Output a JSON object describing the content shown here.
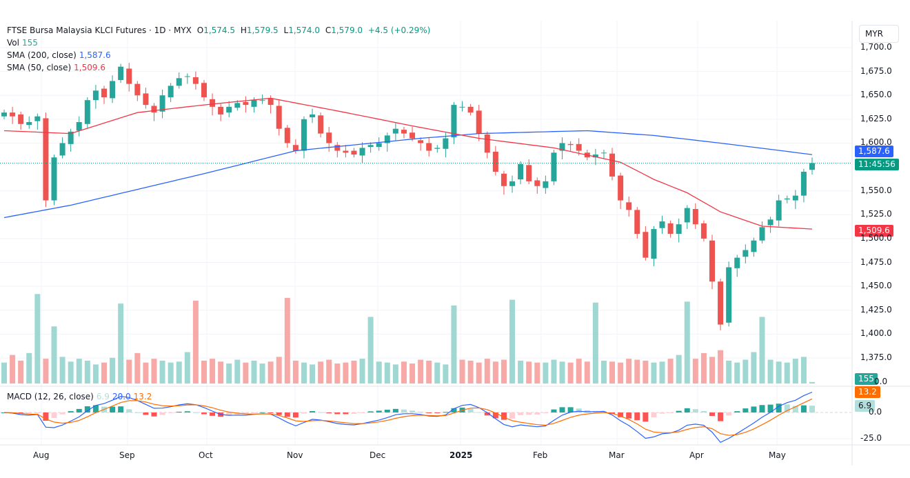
{
  "header": {
    "symbol": "FTSE Bursa Malaysia KLCI Futures · 1D · MYX",
    "open_label": "O",
    "open": "1,574.5",
    "high_label": "H",
    "high": "1,579.5",
    "low_label": "L",
    "low": "1,574.0",
    "close_label": "C",
    "close": "1,579.0",
    "change": "+4.5 (+0.29%)"
  },
  "legend": {
    "vol_label": "Vol",
    "vol_value": "155",
    "sma200_label": "SMA (200, close)",
    "sma200_value": "1,587.6",
    "sma50_label": "SMA (50, close)",
    "sma50_value": "1,509.6",
    "macd_label": "MACD (12, 26, close)",
    "macd_hist": "6.9",
    "macd_line": "20.0",
    "macd_signal": "13.2"
  },
  "axis": {
    "currency": "MYR",
    "price_ticks": [
      "1,700.0",
      "1,675.0",
      "1,650.0",
      "1,625.0",
      "1,600.0",
      "1,550.0",
      "1,525.0",
      "1,500.0",
      "1,475.0",
      "1,450.0",
      "1,425.0",
      "1,400.0",
      "1,375.0"
    ],
    "volume_tick": "0.0",
    "macd_ticks": [
      "0.0",
      "-25.0"
    ],
    "time_labels": [
      "Aug",
      "Sep",
      "Oct",
      "Nov",
      "Dec",
      "2025",
      "Feb",
      "Mar",
      "Apr",
      "May"
    ]
  },
  "badges": {
    "sma200": "1,587.6",
    "countdown": "11:45:56",
    "sma50": "1,509.6",
    "volume": "155",
    "signal": "13.2",
    "hist": "6.9"
  },
  "colors": {
    "up": "#26a69a",
    "down": "#ef5350",
    "sma200": "#2962ff",
    "sma50": "#f23645",
    "macd": "#2962ff",
    "signal": "#ff6d00",
    "vol_up": "#9fd8d2",
    "vol_down": "#f7a9a7"
  },
  "chart_data": {
    "type": "candlestick",
    "price_range": [
      1375,
      1700
    ],
    "close": [
      1632,
      1628,
      1620,
      1622,
      1628,
      1540,
      1585,
      1600,
      1612,
      1622,
      1645,
      1655,
      1648,
      1665,
      1680,
      1662,
      1650,
      1640,
      1632,
      1650,
      1660,
      1668,
      1670,
      1662,
      1648,
      1638,
      1630,
      1638,
      1642,
      1640,
      1645,
      1645,
      1640,
      1615,
      1600,
      1592,
      1625,
      1630,
      1610,
      1600,
      1592,
      1590,
      1588,
      1595,
      1598,
      1600,
      1608,
      1615,
      1610,
      1605,
      1600,
      1592,
      1595,
      1605,
      1640,
      1638,
      1632,
      1610,
      1590,
      1570,
      1555,
      1560,
      1578,
      1560,
      1555,
      1560,
      1590,
      1600,
      1598,
      1592,
      1585,
      1588,
      1590,
      1565,
      1540,
      1530,
      1505,
      1480,
      1510,
      1518,
      1505,
      1515,
      1532,
      1515,
      1500,
      1455,
      1410,
      1470,
      1480,
      1488,
      1498,
      1512,
      1520,
      1540,
      1542,
      1545,
      1570,
      1579
    ],
    "volume": [
      2200,
      3000,
      2400,
      3200,
      9400,
      2600,
      6000,
      2800,
      2300,
      2600,
      2400,
      2000,
      2200,
      2700,
      8400,
      2500,
      3200,
      2200,
      2600,
      2400,
      2200,
      2300,
      3300,
      8700,
      2400,
      2600,
      2300,
      2100,
      2500,
      2200,
      2400,
      2100,
      2300,
      2800,
      9000,
      2400,
      2200,
      2000,
      2300,
      2500,
      2100,
      2200,
      2400,
      2600,
      7000,
      2300,
      2200,
      2000,
      2300,
      2100,
      2500,
      2400,
      2200,
      2000,
      8200,
      2500,
      2400,
      2200,
      2600,
      2300,
      2500,
      8800,
      2400,
      2300,
      2200,
      2200,
      2500,
      2300,
      2200,
      2600,
      2300,
      8500,
      2400,
      2300,
      2200,
      2600,
      2500,
      2400,
      2200,
      2300,
      2600,
      3000,
      8600,
      2600,
      3200,
      2800,
      3500,
      2400,
      2200,
      2500,
      3300,
      7000,
      2500,
      2300,
      2200,
      2600,
      2800,
      155
    ],
    "sma200": {
      "index": [
        0,
        8,
        24,
        35,
        50,
        57,
        70,
        78,
        86,
        97
      ],
      "value": [
        1522,
        1535,
        1568,
        1592,
        1605,
        1610,
        1613,
        1608,
        1600,
        1588
      ]
    },
    "sma50": {
      "index": [
        0,
        8,
        16,
        24,
        32,
        41,
        49,
        57,
        66,
        74,
        78,
        82,
        86,
        91,
        97
      ],
      "value": [
        1613,
        1610,
        1632,
        1640,
        1647,
        1632,
        1618,
        1605,
        1595,
        1580,
        1562,
        1548,
        1528,
        1513,
        1510
      ]
    },
    "macd_range": [
      -35,
      25
    ]
  }
}
